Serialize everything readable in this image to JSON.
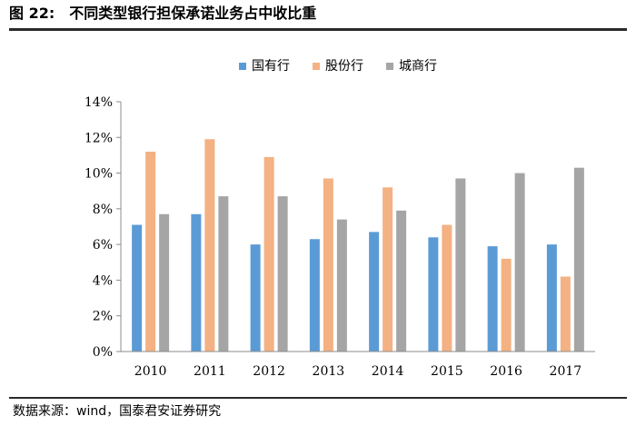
{
  "figure": {
    "title_number": "图 22:",
    "title_text": "不同类型银行担保承诺业务占中收比重",
    "source": "数据来源：wind，国泰君安证券研究"
  },
  "chart_data": {
    "type": "bar",
    "title": "",
    "xlabel": "",
    "ylabel": "",
    "categories": [
      "2010",
      "2011",
      "2012",
      "2013",
      "2014",
      "2015",
      "2016",
      "2017"
    ],
    "series": [
      {
        "name": "国有行",
        "color": "#5B9BD5",
        "values": [
          7.1,
          7.7,
          6.0,
          6.3,
          6.7,
          6.4,
          5.9,
          6.0
        ]
      },
      {
        "name": "股份行",
        "color": "#F4B183",
        "values": [
          11.2,
          11.9,
          10.9,
          9.7,
          9.2,
          7.1,
          5.2,
          4.2
        ]
      },
      {
        "name": "城商行",
        "color": "#A5A5A5",
        "values": [
          7.7,
          8.7,
          8.7,
          7.4,
          7.9,
          9.7,
          10.0,
          10.3
        ]
      }
    ],
    "ylim": [
      0,
      14
    ],
    "yticks": [
      0,
      2,
      4,
      6,
      8,
      10,
      12,
      14
    ],
    "ytick_labels": [
      "0%",
      "2%",
      "4%",
      "6%",
      "8%",
      "10%",
      "12%",
      "14%"
    ],
    "grid": false,
    "legend_position": "top"
  }
}
